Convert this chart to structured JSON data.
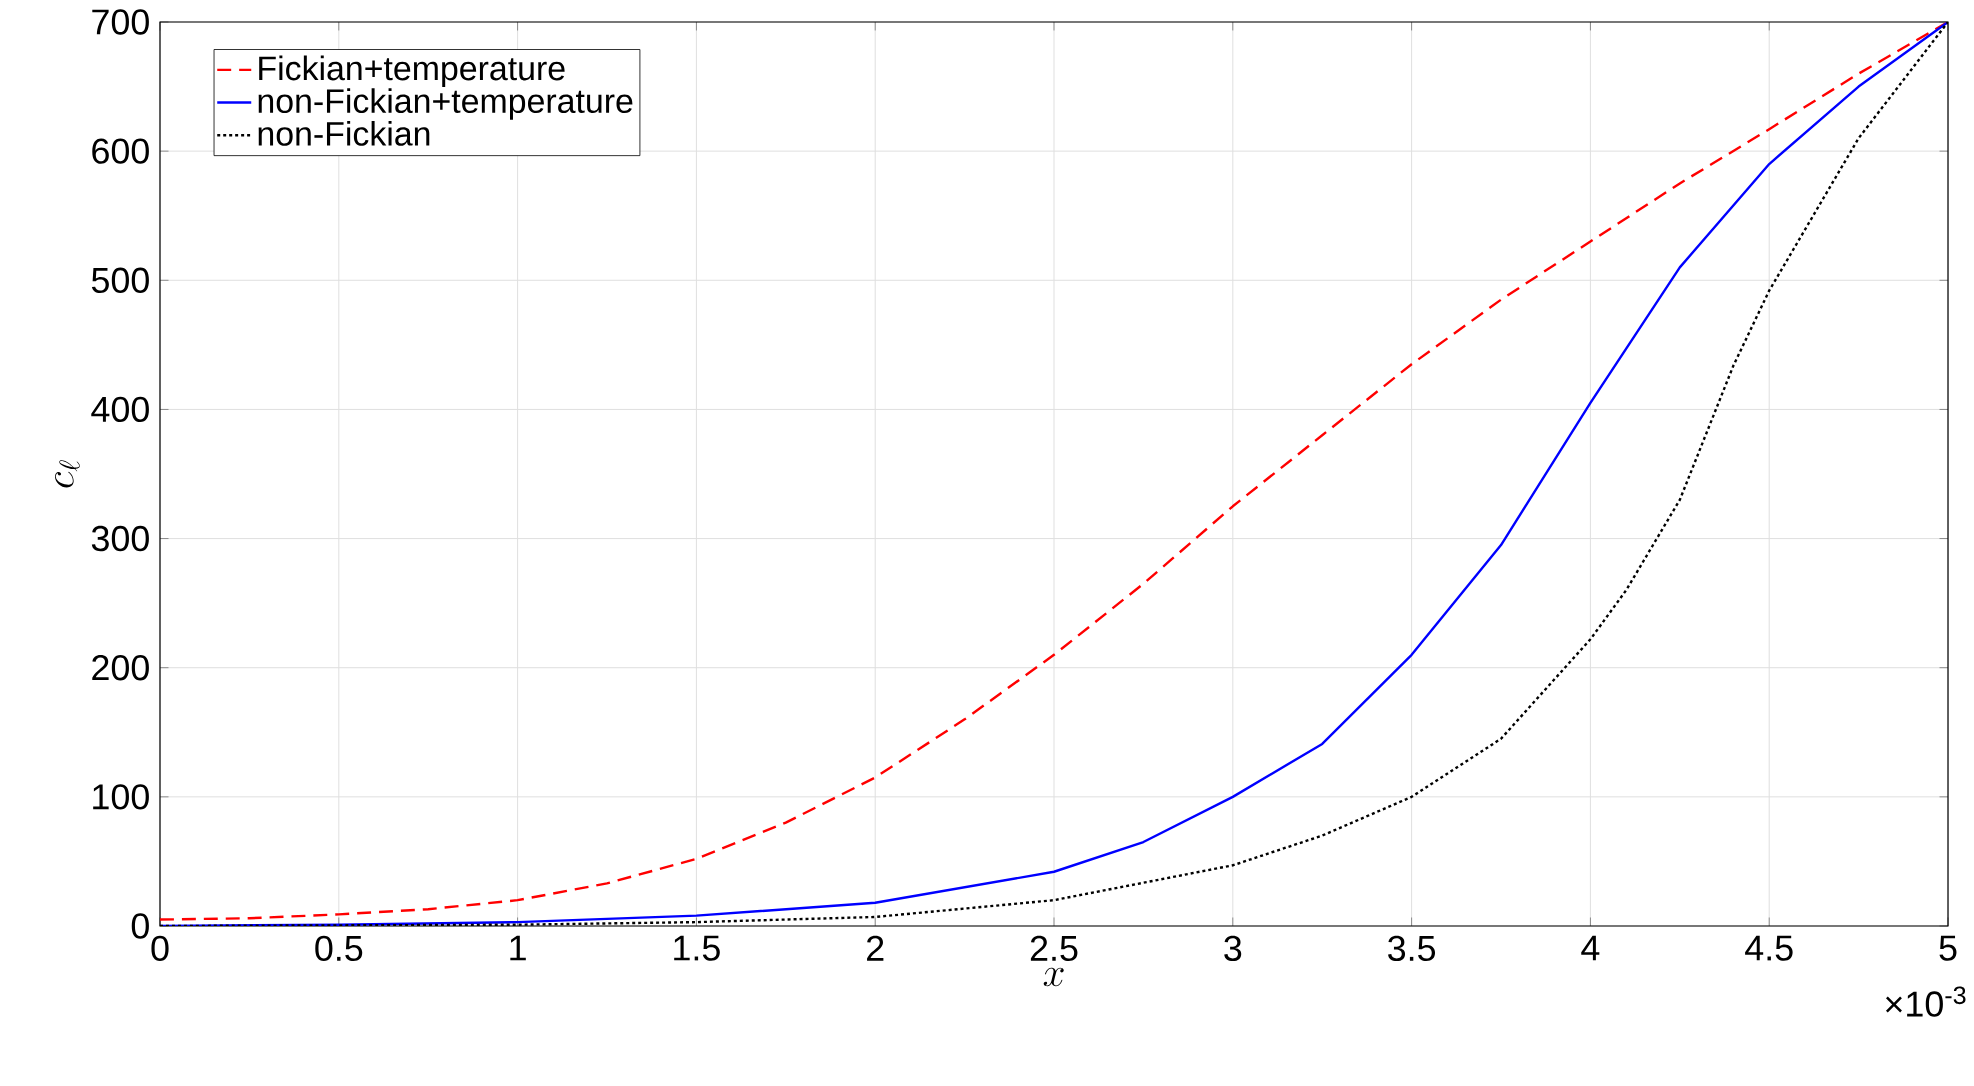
{
  "chart_data": {
    "type": "line",
    "xlabel": "x",
    "ylabel": "c_\\ell",
    "annotations": [
      "×10$^{-3}$"
    ],
    "xlim": [
      0,
      5
    ],
    "ylim": [
      0,
      700
    ],
    "xticks": [
      0,
      0.5,
      1,
      1.5,
      2,
      2.5,
      3,
      3.5,
      4,
      4.5,
      5
    ],
    "yticks": [
      0,
      100,
      200,
      300,
      400,
      500,
      600,
      700
    ],
    "grid": true,
    "legend": "top left",
    "series": [
      {
        "name": "Fickian+temperature",
        "color": "#ff0000",
        "line_style": "dashed",
        "x": [
          0,
          0.25,
          0.5,
          0.75,
          1,
          1.25,
          1.5,
          1.75,
          2,
          2.25,
          2.5,
          2.75,
          3,
          3.25,
          3.5,
          3.75,
          4,
          4.25,
          4.5,
          4.75,
          5
        ],
        "values": [
          5,
          6,
          9,
          13,
          20,
          33,
          52,
          80,
          115,
          160,
          210,
          265,
          325,
          380,
          435,
          485,
          530,
          575,
          617,
          660,
          700
        ]
      },
      {
        "name": "non-Fickian+temperature",
        "color": "#0000ff",
        "line_style": "solid",
        "x": [
          0,
          0.5,
          1,
          1.5,
          2,
          2.5,
          2.75,
          3,
          3.25,
          3.5,
          3.75,
          4,
          4.25,
          4.5,
          4.75,
          5
        ],
        "values": [
          0,
          1,
          3,
          8,
          18,
          42,
          65,
          100,
          141,
          210,
          295,
          405,
          510,
          590,
          650,
          700
        ]
      },
      {
        "name": "non-Fickian",
        "color": "#000000",
        "line_style": "dotted",
        "x": [
          0,
          1,
          1.5,
          2,
          2.5,
          3,
          3.25,
          3.5,
          3.75,
          4,
          4.1,
          4.25,
          4.4,
          4.5,
          4.75,
          5
        ],
        "values": [
          0,
          1,
          3,
          7,
          20,
          47,
          70,
          100,
          145,
          222,
          260,
          330,
          434,
          492,
          610,
          700
        ]
      }
    ]
  }
}
